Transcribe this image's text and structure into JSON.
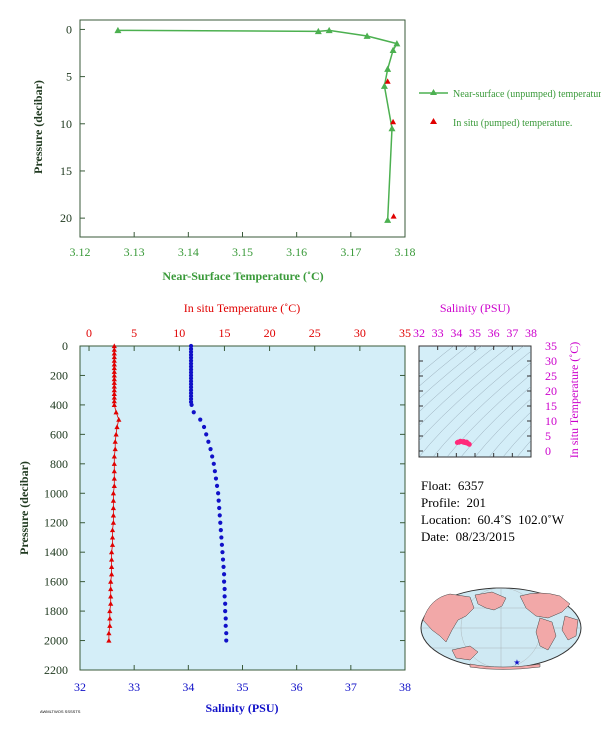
{
  "colors": {
    "green": "#4cb050",
    "green_text": "#3a9a3a",
    "red": "#e00000",
    "blue": "#1010c8",
    "magenta": "#cc00cc",
    "axis_dark": "#203a20",
    "profile_bg": "#d4eef8",
    "land": "#f2a8a8",
    "ocean": "#cfe9f3"
  },
  "chart_data": [
    {
      "id": "near_surface",
      "type": "line",
      "xlabel": "Near-Surface Temperature (˚C)",
      "ylabel": "Pressure (decibar)",
      "xlim": [
        3.12,
        3.18
      ],
      "ylim": [
        22,
        -1
      ],
      "xticks": [
        "3.12",
        "3.13",
        "3.14",
        "3.15",
        "3.16",
        "3.17",
        "3.18"
      ],
      "yticks": [
        "0",
        "5",
        "10",
        "15",
        "20"
      ],
      "series": [
        {
          "name": "Near-surface (unpumped) temperature.",
          "marker": "triangle",
          "points": [
            [
              3.127,
              0.1
            ],
            [
              3.164,
              0.2
            ],
            [
              3.166,
              0.1
            ],
            [
              3.173,
              0.7
            ],
            [
              3.1785,
              1.5
            ],
            [
              3.1778,
              2.2
            ],
            [
              3.1768,
              4.2
            ],
            [
              3.1762,
              6.0
            ],
            [
              3.1776,
              10.5
            ],
            [
              3.1768,
              20.2
            ]
          ]
        },
        {
          "name": "In situ (pumped) temperature.",
          "marker": "triangle",
          "points": [
            [
              3.1768,
              5.5
            ],
            [
              3.1778,
              9.8
            ],
            [
              3.1779,
              19.8
            ]
          ]
        }
      ]
    },
    {
      "id": "profile",
      "type": "scatter",
      "ylabel": "Pressure (decibar)",
      "ylim": [
        2200,
        0
      ],
      "yticks": [
        "0",
        "200",
        "400",
        "600",
        "800",
        "1000",
        "1200",
        "1400",
        "1600",
        "1800",
        "2000",
        "2200"
      ],
      "top_axis": {
        "label": "In situ Temperature (˚C)",
        "lim": [
          -1,
          35
        ],
        "ticks": [
          "0",
          "5",
          "10",
          "15",
          "20",
          "25",
          "30",
          "35"
        ]
      },
      "bottom_axis": {
        "label": "Salinity (PSU)",
        "lim": [
          32,
          38
        ],
        "ticks": [
          "32",
          "33",
          "34",
          "35",
          "36",
          "37",
          "38"
        ]
      },
      "series": [
        {
          "name": "temperature",
          "marker": "triangle",
          "points": [
            [
              2.8,
              0
            ],
            [
              2.8,
              25
            ],
            [
              2.8,
              50
            ],
            [
              2.8,
              75
            ],
            [
              2.8,
              100
            ],
            [
              2.8,
              125
            ],
            [
              2.8,
              150
            ],
            [
              2.8,
              175
            ],
            [
              2.8,
              200
            ],
            [
              2.8,
              225
            ],
            [
              2.8,
              250
            ],
            [
              2.8,
              275
            ],
            [
              2.8,
              300
            ],
            [
              2.8,
              325
            ],
            [
              2.8,
              350
            ],
            [
              2.8,
              375
            ],
            [
              2.8,
              400
            ],
            [
              3.0,
              450
            ],
            [
              3.3,
              500
            ],
            [
              3.1,
              550
            ],
            [
              3.0,
              600
            ],
            [
              2.9,
              650
            ],
            [
              2.9,
              700
            ],
            [
              2.8,
              750
            ],
            [
              2.8,
              800
            ],
            [
              2.8,
              850
            ],
            [
              2.8,
              900
            ],
            [
              2.8,
              950
            ],
            [
              2.7,
              1000
            ],
            [
              2.7,
              1050
            ],
            [
              2.7,
              1100
            ],
            [
              2.7,
              1150
            ],
            [
              2.7,
              1200
            ],
            [
              2.6,
              1250
            ],
            [
              2.6,
              1300
            ],
            [
              2.6,
              1350
            ],
            [
              2.5,
              1400
            ],
            [
              2.5,
              1450
            ],
            [
              2.5,
              1500
            ],
            [
              2.5,
              1550
            ],
            [
              2.4,
              1600
            ],
            [
              2.4,
              1650
            ],
            [
              2.4,
              1700
            ],
            [
              2.4,
              1750
            ],
            [
              2.3,
              1800
            ],
            [
              2.3,
              1850
            ],
            [
              2.3,
              1900
            ],
            [
              2.2,
              1950
            ],
            [
              2.2,
              2000
            ]
          ]
        },
        {
          "name": "salinity",
          "marker": "dot",
          "points": [
            [
              34.05,
              0
            ],
            [
              34.05,
              20
            ],
            [
              34.05,
              40
            ],
            [
              34.05,
              60
            ],
            [
              34.05,
              80
            ],
            [
              34.05,
              100
            ],
            [
              34.05,
              120
            ],
            [
              34.05,
              140
            ],
            [
              34.05,
              160
            ],
            [
              34.05,
              180
            ],
            [
              34.05,
              200
            ],
            [
              34.05,
              220
            ],
            [
              34.05,
              240
            ],
            [
              34.05,
              260
            ],
            [
              34.05,
              280
            ],
            [
              34.05,
              300
            ],
            [
              34.05,
              320
            ],
            [
              34.05,
              340
            ],
            [
              34.05,
              360
            ],
            [
              34.05,
              380
            ],
            [
              34.06,
              400
            ],
            [
              34.1,
              450
            ],
            [
              34.22,
              500
            ],
            [
              34.29,
              550
            ],
            [
              34.33,
              600
            ],
            [
              34.37,
              650
            ],
            [
              34.41,
              700
            ],
            [
              34.44,
              750
            ],
            [
              34.47,
              800
            ],
            [
              34.49,
              850
            ],
            [
              34.51,
              900
            ],
            [
              34.53,
              950
            ],
            [
              34.55,
              1000
            ],
            [
              34.56,
              1050
            ],
            [
              34.57,
              1100
            ],
            [
              34.58,
              1150
            ],
            [
              34.59,
              1200
            ],
            [
              34.6,
              1250
            ],
            [
              34.61,
              1300
            ],
            [
              34.62,
              1350
            ],
            [
              34.63,
              1400
            ],
            [
              34.64,
              1450
            ],
            [
              34.65,
              1500
            ],
            [
              34.66,
              1550
            ],
            [
              34.66,
              1600
            ],
            [
              34.67,
              1650
            ],
            [
              34.67,
              1700
            ],
            [
              34.68,
              1750
            ],
            [
              34.68,
              1800
            ],
            [
              34.69,
              1850
            ],
            [
              34.69,
              1900
            ],
            [
              34.7,
              1950
            ],
            [
              34.7,
              2000
            ]
          ]
        }
      ]
    },
    {
      "id": "ts_diagram",
      "type": "scatter",
      "top_axis": {
        "label": "Salinity (PSU)",
        "lim": [
          32,
          38
        ],
        "ticks": [
          "32",
          "33",
          "34",
          "35",
          "36",
          "37",
          "38"
        ]
      },
      "right_axis": {
        "label": "In situ Temperature (˚C)",
        "lim": [
          -2,
          35
        ],
        "ticks": [
          "0",
          "5",
          "10",
          "15",
          "20",
          "25",
          "30",
          "35"
        ]
      },
      "points": [
        [
          34.05,
          2.8
        ],
        [
          34.1,
          3.0
        ],
        [
          34.22,
          3.3
        ],
        [
          34.3,
          3.1
        ],
        [
          34.38,
          2.9
        ],
        [
          34.45,
          2.8
        ],
        [
          34.52,
          2.7
        ],
        [
          34.58,
          2.6
        ],
        [
          34.63,
          2.5
        ],
        [
          34.68,
          2.3
        ],
        [
          34.7,
          2.2
        ],
        [
          34.15,
          2.9
        ],
        [
          34.4,
          3.2
        ],
        [
          34.55,
          3.0
        ]
      ]
    }
  ],
  "info": {
    "float": "Float:  6357",
    "profile": "Profile:  201",
    "location": "Location:  60.4˚S  102.0˚W",
    "date": "Date:  08/23/2015"
  },
  "map": {
    "marker_lat": -60.4,
    "marker_lon": -102.0,
    "marker_symbol": "★"
  },
  "stamp": "AWMLTWOS SSSSTS"
}
